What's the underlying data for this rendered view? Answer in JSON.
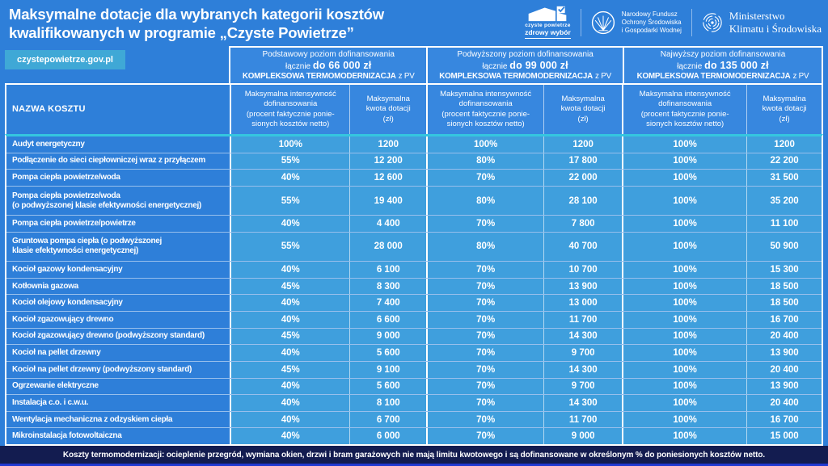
{
  "colors": {
    "page_blue": "#2e7fd9",
    "header_cell_blue": "#3787df",
    "value_cell_blue": "#3f9fdd",
    "badge_teal": "#3fa8d6",
    "teal_divider": "#35c6df",
    "footer_navy": "#131c50",
    "footer_strip_blue": "#2038d0"
  },
  "header": {
    "title_line1": "Maksymalne dotacje dla wybranych kategorii kosztów",
    "title_line2": "kwalifikowanych w programie „Czyste Powietrze”",
    "logos": {
      "czyste_powietrze": {
        "line1": "czyste powietrze",
        "line2": "zdrowy wybór"
      },
      "nfosigw": {
        "line1": "Narodowy Fundusz",
        "line2": "Ochrony Środowiska",
        "line3": "i Gospodarki Wodnej"
      },
      "ministerstwo": {
        "line1": "Ministerstwo",
        "line2": "Klimatu i Środowiska"
      }
    }
  },
  "badge": {
    "label": "czystepowietrze.gov.pl"
  },
  "table": {
    "name_header": "NAZWA KOSZTU",
    "groups": [
      {
        "line1": "Podstawowy poziom dofinansowania",
        "lacznie": "łącznie",
        "amount": "do 66 000 zł",
        "bold": "KOMPLEKSOWA TERMOMODERNIZACJA",
        "suffix": "z PV"
      },
      {
        "line1": "Podwyższony poziom dofinansowania",
        "lacznie": "łącznie",
        "amount": "do 99 000 zł",
        "bold": "KOMPLEKSOWA TERMOMODERNIZACJA",
        "suffix": "z PV"
      },
      {
        "line1": "Najwyższy poziom dofinansowania",
        "lacznie": "łącznie",
        "amount": "do 135 000 zł",
        "bold": "KOMPLEKSOWA TERMOMODERNIZACJA",
        "suffix": "z PV"
      }
    ],
    "sub_intensity": "Maksymalna intensywność\ndofinansowania\n(procent faktycznie ponie-\nsionych kosztów netto)",
    "sub_amount": "Maksymalna\nkwota dotacji\n(zł)"
  },
  "chart_data": {
    "type": "table",
    "title": "Maksymalne dotacje dla wybranych kategorii kosztów kwalifikowanych w programie „Czyste Powietrze”",
    "column_groups": [
      "Podstawowy poziom dofinansowania — łącznie do 66 000 zł — KOMPLEKSOWA TERMOMODERNIZACJA z PV",
      "Podwyższony poziom dofinansowania — łącznie do 99 000 zł — KOMPLEKSOWA TERMOMODERNIZACJA z PV",
      "Najwyższy poziom dofinansowania — łącznie do 135 000 zł — KOMPLEKSOWA TERMOMODERNIZACJA z PV"
    ],
    "columns": [
      "Nazwa kosztu",
      "Podstawowy: maksymalna intensywność dofinansowania (procent faktycznie poniesionych kosztów netto)",
      "Podstawowy: maksymalna kwota dotacji (zł)",
      "Podwyższony: maksymalna intensywność dofinansowania (procent faktycznie poniesionych kosztów netto)",
      "Podwyższony: maksymalna kwota dotacji (zł)",
      "Najwyższy: maksymalna intensywność dofinansowania (procent faktycznie poniesionych kosztów netto)",
      "Najwyższy: maksymalna kwota dotacji (zł)"
    ],
    "rows": [
      {
        "name": "Audyt energetyczny",
        "values": [
          "100%",
          "1200",
          "100%",
          "1200",
          "100%",
          "1200"
        ]
      },
      {
        "name": "Podłączenie do sieci ciepłowniczej wraz z przyłączem",
        "values": [
          "55%",
          "12 200",
          "80%",
          "17 800",
          "100%",
          "22 200"
        ]
      },
      {
        "name": "Pompa ciepła powietrze/woda",
        "values": [
          "40%",
          "12 600",
          "70%",
          "22 000",
          "100%",
          "31 500"
        ]
      },
      {
        "name": "Pompa ciepła powietrze/woda\n(o podwyższonej klasie efektywności energetycznej)",
        "values": [
          "55%",
          "19 400",
          "80%",
          "28 100",
          "100%",
          "35 200"
        ]
      },
      {
        "name": "Pompa ciepła powietrze/powietrze",
        "values": [
          "40%",
          "4 400",
          "70%",
          "7 800",
          "100%",
          "11 100"
        ]
      },
      {
        "name": "Gruntowa pompa ciepła (o podwyższonej\nklasie efektywności energetycznej)",
        "values": [
          "55%",
          "28 000",
          "80%",
          "40 700",
          "100%",
          "50 900"
        ]
      },
      {
        "name": "Kocioł gazowy kondensacyjny",
        "values": [
          "40%",
          "6 100",
          "70%",
          "10 700",
          "100%",
          "15 300"
        ]
      },
      {
        "name": "Kotłownia gazowa",
        "values": [
          "45%",
          "8 300",
          "70%",
          "13 900",
          "100%",
          "18 500"
        ]
      },
      {
        "name": "Kocioł olejowy kondensacyjny",
        "values": [
          "40%",
          "7 400",
          "70%",
          "13 000",
          "100%",
          "18 500"
        ]
      },
      {
        "name": "Kocioł zgazowujący drewno",
        "values": [
          "40%",
          "6 600",
          "70%",
          "11 700",
          "100%",
          "16 700"
        ]
      },
      {
        "name": "Kocioł zgazowujący drewno (podwyższony standard)",
        "values": [
          "45%",
          "9 000",
          "70%",
          "14 300",
          "100%",
          "20 400"
        ]
      },
      {
        "name": "Kocioł na pellet drzewny",
        "values": [
          "40%",
          "5 600",
          "70%",
          "9 700",
          "100%",
          "13 900"
        ]
      },
      {
        "name": "Kocioł na pellet drzewny (podwyższony standard)",
        "values": [
          "45%",
          "9 100",
          "70%",
          "14 300",
          "100%",
          "20 400"
        ]
      },
      {
        "name": "Ogrzewanie elektryczne",
        "values": [
          "40%",
          "5 600",
          "70%",
          "9 700",
          "100%",
          "13 900"
        ]
      },
      {
        "name": "Instalacja c.o. i c.w.u.",
        "values": [
          "40%",
          "8 100",
          "70%",
          "14 300",
          "100%",
          "20 400"
        ]
      },
      {
        "name": "Wentylacja mechaniczna z odzyskiem ciepła",
        "values": [
          "40%",
          "6 700",
          "70%",
          "11 700",
          "100%",
          "16 700"
        ]
      },
      {
        "name": "Mikroinstalacja fotowoltaiczna",
        "values": [
          "40%",
          "6 000",
          "70%",
          "9 000",
          "100%",
          "15 000"
        ]
      }
    ]
  },
  "footer": {
    "note": "Koszty termomodernizacji: ocieplenie przegród, wymiana okien, drzwi i bram garażowych nie mają limitu kwotowego i są dofinansowane w określonym % do poniesionych kosztów netto."
  }
}
